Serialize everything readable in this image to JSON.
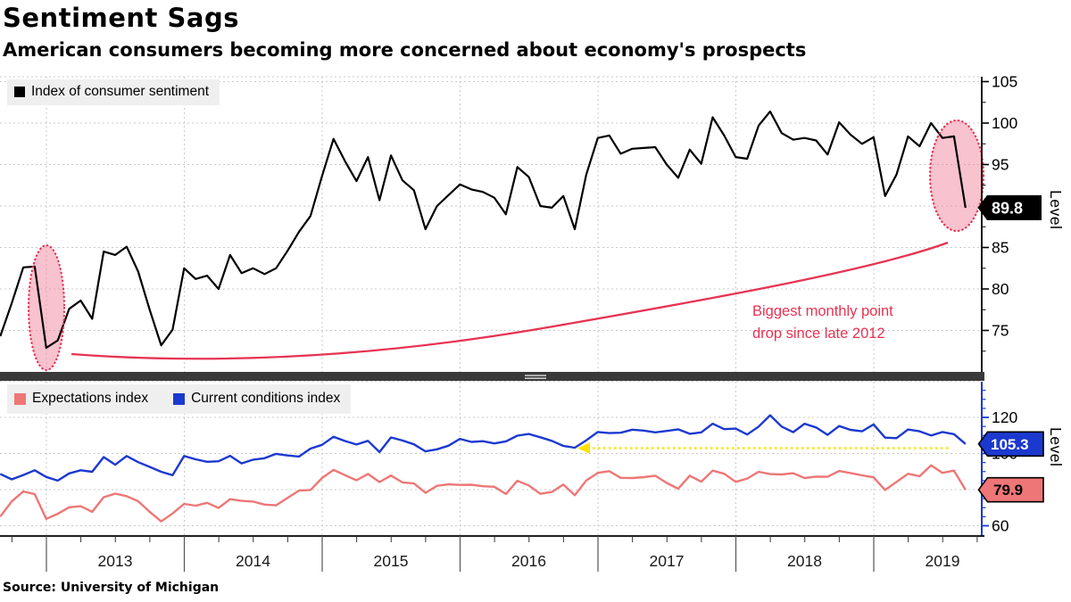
{
  "header": {
    "title": "Sentiment Sags",
    "subtitle": "American consumers becoming more concerned about economy's prospects"
  },
  "source": "Source: University of Michigan",
  "colors": {
    "sentiment_line": "#000000",
    "expectations_line": "#ee7676",
    "conditions_line": "#1c39cf",
    "crimson_annotation": "#e73352",
    "pink_ellipse_fill": "#f08098",
    "yellow_arrow": "#ffe10a",
    "gridline": "#c9c9c9",
    "legend_bg": "#efefef",
    "divider": "#3a3a3a"
  },
  "top_panel": {
    "legend": [
      {
        "label": "Index of consumer sentiment",
        "color": "#000000"
      }
    ],
    "axis": {
      "title": "Level",
      "labels": [
        {
          "value": 105,
          "label": "105"
        },
        {
          "value": 100,
          "label": "100"
        },
        {
          "value": 95,
          "label": "95"
        },
        {
          "value": 85,
          "label": "85"
        },
        {
          "value": 80,
          "label": "80"
        },
        {
          "value": 75,
          "label": "75"
        }
      ]
    },
    "badge": {
      "label": "89.8",
      "bg": "#000000",
      "fg": "#ffffff"
    },
    "annotation": {
      "lines": [
        "Biggest monthly point",
        "drop since late 2012"
      ],
      "color": "#e73352"
    }
  },
  "bottom_panel": {
    "legend": [
      {
        "label": "Expectations index",
        "color": "#ee7676"
      },
      {
        "label": "Current conditions index",
        "color": "#1c39cf"
      }
    ],
    "axis": {
      "title": "Level",
      "labels": [
        {
          "value": 120,
          "label": "120"
        },
        {
          "value": 100,
          "label": "100"
        },
        {
          "value": 60,
          "label": "60"
        }
      ]
    },
    "badges": [
      {
        "label": "105.3",
        "bg": "#1c39cf",
        "fg": "#ffffff"
      },
      {
        "label": "79.9",
        "bg": "#ee7676",
        "fg": "#000000"
      }
    ]
  },
  "x_axis": {
    "year_labels": [
      "2013",
      "2014",
      "2015",
      "2016",
      "2017",
      "2018",
      "2019"
    ]
  },
  "chart_data": [
    {
      "type": "line",
      "title": "Index of consumer sentiment",
      "x_start": "2012-08",
      "x_end": "2019-08",
      "frequency": "monthly",
      "ylabel": "Level",
      "ylim": [
        71,
        106
      ],
      "yticks": [
        75,
        80,
        85,
        90,
        95,
        100,
        105
      ],
      "grid": true,
      "last_value_label": "89.8",
      "annotations": [
        "Biggest monthly point drop since late 2012"
      ],
      "highlighted_regions": [
        "Dec 2012 drop",
        "Aug 2019 drop"
      ],
      "series": [
        {
          "name": "Index of consumer sentiment",
          "color": "#000000",
          "values": [
            74.3,
            78.3,
            82.6,
            82.7,
            72.9,
            73.8,
            77.6,
            78.6,
            76.4,
            84.5,
            84.1,
            85.1,
            82.1,
            77.5,
            73.2,
            75.1,
            82.5,
            81.2,
            81.6,
            80.0,
            84.1,
            81.9,
            82.5,
            81.8,
            82.5,
            84.6,
            86.9,
            88.8,
            93.6,
            98.1,
            95.4,
            93.0,
            95.9,
            90.7,
            96.1,
            93.1,
            91.9,
            87.2,
            90.0,
            91.3,
            92.6,
            92.0,
            91.7,
            91.0,
            89.0,
            94.7,
            93.5,
            90.0,
            89.8,
            91.2,
            87.2,
            93.8,
            98.2,
            98.5,
            96.3,
            96.9,
            97.0,
            97.1,
            95.0,
            93.4,
            96.8,
            95.1,
            100.7,
            98.5,
            95.9,
            95.7,
            99.7,
            101.4,
            98.8,
            98.0,
            98.2,
            97.9,
            96.2,
            100.1,
            98.6,
            97.5,
            98.3,
            91.2,
            93.8,
            98.4,
            97.2,
            100.0,
            98.2,
            98.4,
            89.8
          ]
        }
      ]
    },
    {
      "type": "line",
      "x_start": "2012-08",
      "x_end": "2019-08",
      "frequency": "monthly",
      "ylabel": "Level",
      "ylim": [
        55,
        145
      ],
      "yticks": [
        60,
        80,
        100,
        120,
        140
      ],
      "grid": true,
      "last_value_labels": [
        "79.9",
        "105.3"
      ],
      "series": [
        {
          "name": "Expectations index",
          "color": "#ee7676",
          "values": [
            65.1,
            73.5,
            79.0,
            77.5,
            63.8,
            66.6,
            70.2,
            70.8,
            67.7,
            75.8,
            77.8,
            76.4,
            73.6,
            67.7,
            62.4,
            66.8,
            72.1,
            71.1,
            72.7,
            69.9,
            74.7,
            73.8,
            73.4,
            71.7,
            71.3,
            75.4,
            79.5,
            79.8,
            86.4,
            90.9,
            88.0,
            85.2,
            88.7,
            84.2,
            87.8,
            84.0,
            83.4,
            78.2,
            82.1,
            82.9,
            82.6,
            82.7,
            81.9,
            81.6,
            77.6,
            84.9,
            82.3,
            77.7,
            78.7,
            82.8,
            76.9,
            85.1,
            89.3,
            90.2,
            86.5,
            86.4,
            86.9,
            87.7,
            83.7,
            80.5,
            87.7,
            84.4,
            90.5,
            88.8,
            84.3,
            86.1,
            89.9,
            88.6,
            88.4,
            89.1,
            86.4,
            87.2,
            87.1,
            90.3,
            89.2,
            87.9,
            86.8,
            79.8,
            84.3,
            88.8,
            87.4,
            93.5,
            89.3,
            90.5,
            79.9
          ]
        },
        {
          "name": "Current conditions index",
          "color": "#1c39cf",
          "values": [
            88.7,
            85.7,
            88.1,
            90.7,
            87.0,
            85.0,
            89.0,
            90.7,
            89.9,
            98.0,
            93.8,
            98.6,
            95.2,
            92.6,
            89.9,
            88.0,
            98.6,
            96.8,
            95.4,
            95.7,
            98.7,
            94.5,
            96.6,
            97.4,
            99.8,
            98.9,
            98.3,
            102.7,
            104.8,
            109.3,
            106.9,
            105.0,
            107.0,
            100.8,
            108.9,
            107.2,
            105.1,
            101.2,
            102.3,
            104.3,
            108.1,
            106.4,
            106.8,
            105.6,
            106.7,
            109.9,
            110.8,
            109.0,
            107.0,
            104.2,
            103.2,
            107.3,
            111.9,
            111.3,
            111.5,
            113.2,
            112.7,
            111.7,
            112.5,
            113.4,
            110.9,
            111.7,
            116.5,
            113.5,
            113.8,
            110.5,
            114.9,
            121.2,
            114.9,
            111.8,
            116.5,
            114.4,
            110.3,
            115.2,
            113.1,
            112.3,
            116.1,
            108.8,
            108.5,
            113.3,
            112.3,
            110.0,
            111.9,
            110.7,
            105.3
          ]
        }
      ]
    }
  ]
}
